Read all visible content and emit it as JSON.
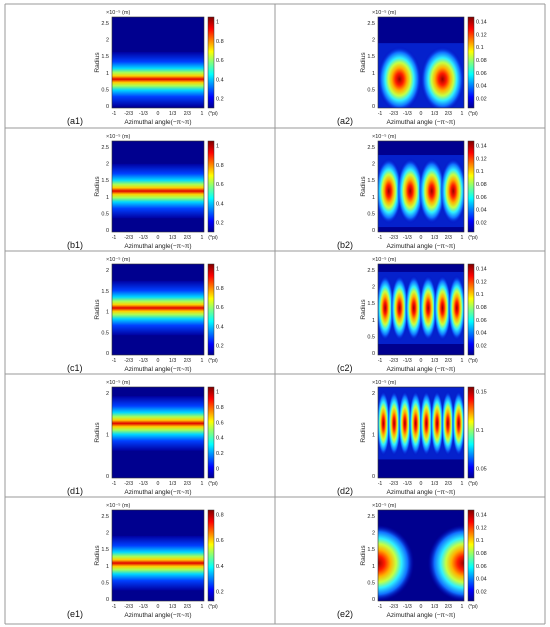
{
  "figure": {
    "panels": [
      {
        "id": "a1",
        "caption": "(a1)",
        "kind": "band",
        "modes": 0,
        "centerR": 0.95,
        "width": 0.32,
        "cbmax": "1",
        "cbticks": [
          "1",
          "0.8",
          "0.6",
          "0.4",
          "0.2"
        ],
        "yticks": [
          "2.5",
          "2",
          "1.5",
          "1",
          "0.5",
          "0"
        ],
        "xlabel": "Azimuthal angle(−π~π)"
      },
      {
        "id": "a2",
        "caption": "(a2)",
        "kind": "modes",
        "modes": 2,
        "centerR": 0.95,
        "width": 0.32,
        "cbmax": "0.14",
        "cbticks": [
          "0.14",
          "0.12",
          "0.1",
          "0.08",
          "0.06",
          "0.04",
          "0.02"
        ],
        "yticks": [
          "2.5",
          "2",
          "1.5",
          "1",
          "0.5",
          "0"
        ],
        "xlabel": "Azimuthal angle (−π~π)"
      },
      {
        "id": "b1",
        "caption": "(b1)",
        "kind": "band",
        "modes": 0,
        "centerR": 1.35,
        "width": 0.32,
        "cbmax": "1",
        "cbticks": [
          "1",
          "0.8",
          "0.6",
          "0.4",
          "0.2"
        ],
        "yticks": [
          "2.5",
          "2",
          "1.5",
          "1",
          "0.5",
          "0"
        ],
        "xlabel": "Azimuthal angle(−π~π)"
      },
      {
        "id": "b2",
        "caption": "(b2)",
        "kind": "modes",
        "modes": 4,
        "centerR": 1.35,
        "width": 0.3,
        "cbmax": "0.14",
        "cbticks": [
          "0.14",
          "0.12",
          "0.1",
          "0.08",
          "0.06",
          "0.04",
          "0.02"
        ],
        "yticks": [
          "2.5",
          "2",
          "1.5",
          "1",
          "0.5",
          "0"
        ],
        "xlabel": "Azimuthal angle (−π~π)"
      },
      {
        "id": "c1",
        "caption": "(c1)",
        "kind": "band",
        "modes": 0,
        "centerR": 1.55,
        "width": 0.32,
        "cbmax": "1",
        "cbticks": [
          "1",
          "0.8",
          "0.6",
          "0.4",
          "0.2"
        ],
        "yticks": [
          "2",
          "1.5",
          "1",
          "0.5",
          "0"
        ],
        "xlabel": "Azimuthal angle(−π~π)"
      },
      {
        "id": "c2",
        "caption": "(c2)",
        "kind": "modes",
        "modes": 6,
        "centerR": 1.55,
        "width": 0.3,
        "cbmax": "0.14",
        "cbticks": [
          "0.14",
          "0.12",
          "0.1",
          "0.08",
          "0.06",
          "0.04",
          "0.02"
        ],
        "yticks": [
          "2.5",
          "2",
          "1.5",
          "1",
          "0.5",
          "0"
        ],
        "xlabel": "Azimuthal angle (−π~π)"
      },
      {
        "id": "d1",
        "caption": "(d1)",
        "kind": "band",
        "modes": 0,
        "centerR": 1.8,
        "width": 0.3,
        "cbmax": "1",
        "cbticks": [
          "1",
          "0.8",
          "0.6",
          "0.4",
          "0.2",
          "0"
        ],
        "yticks": [
          "2",
          "1",
          "0"
        ],
        "xlabel": "Azimuthal angle(−π~π)"
      },
      {
        "id": "d2",
        "caption": "(d2)",
        "kind": "modes",
        "modes": 8,
        "centerR": 1.8,
        "width": 0.3,
        "cbmax": "0.15",
        "cbticks": [
          "0.15",
          "0.1",
          "0.05"
        ],
        "yticks": [
          "2",
          "1",
          "0"
        ],
        "xlabel": "Azimuthal angle (−π~π)"
      },
      {
        "id": "e1",
        "caption": "(e1)",
        "kind": "band",
        "modes": 0,
        "centerR": 1.25,
        "width": 0.32,
        "cbmax": "0.8",
        "cbticks": [
          "0.8",
          "0.6",
          "0.4",
          "0.2"
        ],
        "yticks": [
          "2.5",
          "2",
          "1.5",
          "1",
          "0.5",
          "0"
        ],
        "xlabel": "Azimuthal angle(−π~π)"
      },
      {
        "id": "e2",
        "caption": "(e2)",
        "kind": "edges",
        "modes": 1,
        "centerR": 1.25,
        "width": 0.32,
        "cbmax": "0.14",
        "cbticks": [
          "0.14",
          "0.12",
          "0.1",
          "0.08",
          "0.06",
          "0.04",
          "0.02"
        ],
        "yticks": [
          "2.5",
          "2",
          "1.5",
          "1",
          "0.5",
          "0"
        ],
        "xlabel": "Azimuthal angle (−π~π)"
      }
    ],
    "scale_label": "×10⁻⁵ (m)",
    "ylabel": "Radius",
    "xticks": [
      "-1",
      "-2/3",
      "-1/3",
      "0",
      "1/3",
      "2/3",
      "1"
    ],
    "xunit": "(*pi)"
  }
}
